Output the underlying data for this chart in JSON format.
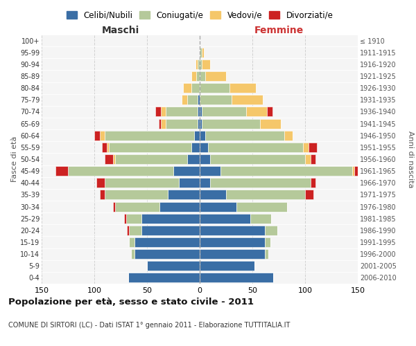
{
  "age_groups": [
    "0-4",
    "5-9",
    "10-14",
    "15-19",
    "20-24",
    "25-29",
    "30-34",
    "35-39",
    "40-44",
    "45-49",
    "50-54",
    "55-59",
    "60-64",
    "65-69",
    "70-74",
    "75-79",
    "80-84",
    "85-89",
    "90-94",
    "95-99",
    "100+"
  ],
  "birth_years": [
    "2006-2010",
    "2001-2005",
    "1996-2000",
    "1991-1995",
    "1986-1990",
    "1981-1985",
    "1976-1980",
    "1971-1975",
    "1966-1970",
    "1961-1965",
    "1956-1960",
    "1951-1955",
    "1946-1950",
    "1941-1945",
    "1936-1940",
    "1931-1935",
    "1926-1930",
    "1921-1925",
    "1916-1920",
    "1911-1915",
    "≤ 1910"
  ],
  "maschi": {
    "celibi": [
      68,
      50,
      62,
      62,
      55,
      55,
      38,
      30,
      20,
      25,
      12,
      8,
      5,
      2,
      2,
      2,
      0,
      0,
      0,
      0,
      0
    ],
    "coniugati": [
      0,
      0,
      3,
      5,
      12,
      15,
      42,
      60,
      70,
      100,
      68,
      78,
      85,
      30,
      30,
      10,
      8,
      3,
      2,
      0,
      0
    ],
    "vedovi": [
      0,
      0,
      0,
      0,
      0,
      0,
      0,
      0,
      0,
      0,
      2,
      2,
      5,
      5,
      5,
      5,
      8,
      5,
      2,
      0,
      0
    ],
    "divorziati": [
      0,
      0,
      0,
      0,
      2,
      2,
      2,
      5,
      8,
      12,
      8,
      5,
      5,
      2,
      5,
      0,
      0,
      0,
      0,
      0,
      0
    ]
  },
  "femmine": {
    "nubili": [
      70,
      52,
      62,
      62,
      62,
      48,
      35,
      25,
      10,
      20,
      10,
      8,
      5,
      2,
      2,
      0,
      0,
      0,
      0,
      0,
      0
    ],
    "coniugate": [
      0,
      0,
      3,
      5,
      12,
      20,
      48,
      75,
      95,
      125,
      90,
      90,
      75,
      55,
      42,
      30,
      28,
      5,
      2,
      2,
      0
    ],
    "vedove": [
      0,
      0,
      0,
      0,
      0,
      0,
      0,
      0,
      0,
      2,
      5,
      5,
      8,
      20,
      20,
      30,
      25,
      20,
      8,
      2,
      0
    ],
    "divorziate": [
      0,
      0,
      0,
      0,
      0,
      0,
      0,
      8,
      5,
      12,
      5,
      8,
      0,
      0,
      5,
      0,
      0,
      0,
      0,
      0,
      0
    ]
  },
  "colors": {
    "celibi": "#3a6ea5",
    "coniugati": "#b5c99a",
    "vedovi": "#f5c76a",
    "divorziati": "#cc2222"
  },
  "title": "Popolazione per età, sesso e stato civile - 2011",
  "subtitle": "COMUNE DI SIRTORI (LC) - Dati ISTAT 1° gennaio 2011 - Elaborazione TUTTITALIA.IT",
  "xlabel_left": "Maschi",
  "xlabel_right": "Femmine",
  "ylabel_left": "Fasce di età",
  "ylabel_right": "Anni di nascita",
  "xlim": 150,
  "legend_labels": [
    "Celibi/Nubili",
    "Coniugati/e",
    "Vedovi/e",
    "Divorziati/e"
  ],
  "bg_plot": "#f5f5f5",
  "bg_fig": "#ffffff",
  "grid_color": "#cccccc"
}
